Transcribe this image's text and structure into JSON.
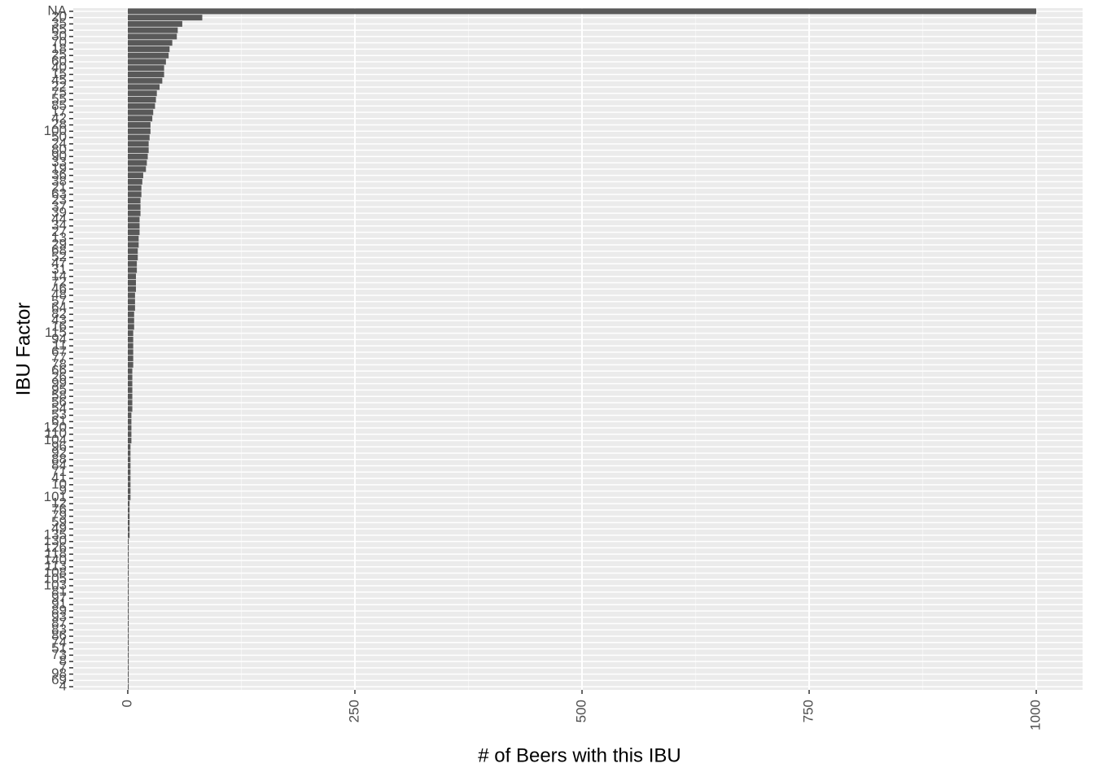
{
  "chart_data": {
    "type": "barh",
    "x_label": "# of Beers with this IBU",
    "y_label": "IBU Factor",
    "categories": [
      "NA",
      "20",
      "35",
      "65",
      "30",
      "70",
      "18",
      "25",
      "60",
      "40",
      "15",
      "45",
      "22",
      "75",
      "55",
      "85",
      "17",
      "42",
      "28",
      "100",
      "50",
      "24",
      "80",
      "90",
      "33",
      "19",
      "36",
      "38",
      "21",
      "63",
      "23",
      "37",
      "39",
      "44",
      "34",
      "27",
      "13",
      "29",
      "68",
      "52",
      "47",
      "31",
      "14",
      "72",
      "46",
      "48",
      "57",
      "64",
      "82",
      "43",
      "16",
      "115",
      "94",
      "11",
      "67",
      "77",
      "78",
      "66",
      "26",
      "99",
      "95",
      "58",
      "56",
      "54",
      "53",
      "61",
      "120",
      "110",
      "104",
      "96",
      "92",
      "88",
      "84",
      "71",
      "41",
      "10",
      "9",
      "101",
      "12",
      "76",
      "79",
      "59",
      "49",
      "135",
      "130",
      "126",
      "118",
      "140",
      "113",
      "108",
      "105",
      "103",
      "81",
      "97",
      "91",
      "89",
      "93",
      "87",
      "83",
      "86",
      "74",
      "51",
      "73",
      "8",
      "7",
      "98",
      "69",
      "4"
    ],
    "values": [
      1000,
      82,
      60,
      55,
      54,
      49,
      46,
      45,
      42,
      40,
      40,
      38,
      35,
      32,
      31,
      30,
      28,
      27,
      25,
      25,
      24,
      23,
      23,
      22,
      21,
      20,
      17,
      16,
      15,
      15,
      14,
      14,
      14,
      13,
      13,
      13,
      12,
      12,
      11,
      11,
      10,
      10,
      9,
      9,
      9,
      8,
      8,
      8,
      7,
      7,
      7,
      6,
      6,
      6,
      6,
      6,
      6,
      5,
      5,
      5,
      5,
      5,
      5,
      5,
      4,
      4,
      4,
      4,
      4,
      3,
      3,
      3,
      3,
      3,
      3,
      3,
      3,
      3,
      2,
      2,
      2,
      2,
      2,
      2,
      1,
      1,
      1,
      1,
      1,
      1,
      1,
      1,
      1,
      1,
      1,
      1,
      1,
      1,
      1,
      1,
      1,
      1,
      1,
      1,
      1,
      1,
      1,
      1
    ],
    "color": "#595959",
    "xlim": [
      -60,
      1051
    ],
    "xticks": [
      0,
      250,
      500,
      750,
      1000
    ],
    "grid": true
  }
}
